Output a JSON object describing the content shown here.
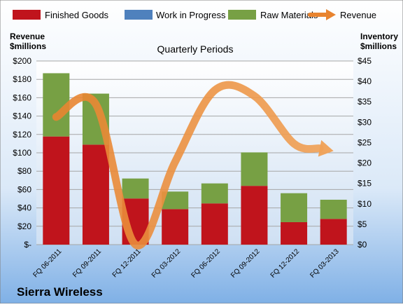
{
  "chart_data": {
    "type": "bar",
    "title": "Quarterly Periods",
    "company": "Sierra Wireless",
    "left_axis": {
      "label_line1": "Revenue",
      "label_line2": "$millions",
      "range": [
        0,
        200
      ],
      "step": 20,
      "tick_labels": [
        "$-",
        "$20",
        "$40",
        "$60",
        "$80",
        "$100",
        "$120",
        "$140",
        "$160",
        "$180",
        "$200"
      ]
    },
    "right_axis": {
      "label_line1": "Inventory",
      "label_line2": "$millions",
      "range": [
        0,
        45
      ],
      "step": 5,
      "tick_labels": [
        "$0",
        "$5",
        "$10",
        "$15",
        "$20",
        "$25",
        "$30",
        "$35",
        "$40",
        "$45"
      ]
    },
    "categories": [
      "FQ 06-2011",
      "FQ 09-2011",
      "FQ 12-2011",
      "FQ 03-2012",
      "FQ 06-2012",
      "FQ 09-2012",
      "FQ 12-2012",
      "FQ 03-2013"
    ],
    "grid": true,
    "legend_position": "top",
    "series": [
      {
        "name": "Finished Goods",
        "type": "stacked-bar",
        "axis": "right",
        "color": "#c0141c",
        "values": [
          26.5,
          24.5,
          11.3,
          8.7,
          10.1,
          14.4,
          5.5,
          6.3
        ]
      },
      {
        "name": "Work in Progress",
        "type": "stacked-bar",
        "axis": "right",
        "color": "#4f81bd",
        "values": [
          0,
          0,
          0,
          0,
          0,
          0,
          0,
          0
        ]
      },
      {
        "name": "Raw Materials",
        "type": "stacked-bar",
        "axis": "right",
        "color": "#77a044",
        "values": [
          15.5,
          12.5,
          4.9,
          4.3,
          4.9,
          8.2,
          7.1,
          4.7
        ]
      },
      {
        "name": "Revenue",
        "type": "line",
        "axis": "left",
        "color": "#e8842f",
        "values": [
          139,
          153,
          0,
          90,
          168,
          162,
          110,
          102
        ]
      }
    ]
  }
}
